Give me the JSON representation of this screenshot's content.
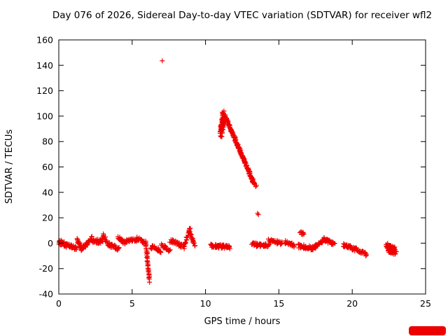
{
  "chart_data": {
    "type": "scatter",
    "title": "Day 076 of 2026, Sidereal Day-to-day VTEC variation (SDTVAR) for receiver wfl2",
    "xlabel": "GPS time / hours",
    "ylabel": "SDTVAR / TECUs",
    "xlim": [
      0,
      25
    ],
    "ylim": [
      -40,
      160
    ],
    "xticks": [
      0,
      5,
      10,
      15,
      20,
      25
    ],
    "yticks": [
      -40,
      -20,
      0,
      20,
      40,
      60,
      80,
      100,
      120,
      140,
      160
    ],
    "grid": false,
    "legend": "none",
    "marker": {
      "shape": "plus",
      "color": "#ee0000",
      "size": 7
    },
    "series": [
      {
        "name": "SDTVAR",
        "segments": [
          [
            0.05,
            1,
            0.55,
            -2,
            26,
            0.05,
            1.8
          ],
          [
            0.55,
            -1,
            1.2,
            -4,
            30,
            0.05,
            1.5
          ],
          [
            1.25,
            3,
            1.6,
            -6,
            22,
            0.05,
            1.5
          ],
          [
            1.6,
            -4,
            2.3,
            4,
            30,
            0.05,
            1.5
          ],
          [
            2.3,
            1,
            3.0,
            2,
            34,
            0.06,
            1.8
          ],
          [
            3.0,
            6,
            3.45,
            -2,
            20,
            0.05,
            1.5
          ],
          [
            3.45,
            -1,
            4.1,
            -5,
            26,
            0.05,
            1.5
          ],
          [
            4.05,
            4,
            4.6,
            0,
            22,
            0.05,
            1.5
          ],
          [
            4.6,
            2,
            5.3,
            3,
            28,
            0.06,
            1.5
          ],
          [
            5.3,
            4,
            5.95,
            0,
            26,
            0.05,
            1.5
          ],
          [
            5.95,
            -1,
            6.18,
            -30,
            34,
            0.035,
            1.2
          ],
          [
            6.3,
            -3,
            7.0,
            -6,
            28,
            0.06,
            1.6
          ],
          [
            7.0,
            -2,
            7.6,
            -6,
            22,
            0.05,
            1.5
          ],
          [
            7.6,
            2,
            8.4,
            -2,
            30,
            0.06,
            1.6
          ],
          [
            8.5,
            -4,
            8.95,
            12,
            26,
            0.04,
            1.3
          ],
          [
            8.95,
            9,
            9.25,
            -2,
            16,
            0.04,
            1.3
          ],
          [
            10.35,
            -2,
            11.65,
            -3,
            60,
            0.06,
            1.4
          ],
          [
            11.02,
            86,
            11.2,
            103,
            32,
            0.045,
            2.2
          ],
          [
            11.08,
            89,
            11.28,
            102,
            30,
            0.045,
            2.2
          ],
          [
            11.05,
            85,
            11.3,
            99,
            24,
            0.05,
            2.5
          ],
          [
            11.3,
            101,
            13.35,
            46,
            115,
            0.035,
            1.1
          ],
          [
            11.38,
            99,
            13.3,
            47,
            75,
            0.035,
            1.1
          ],
          [
            13.15,
            -1,
            14.3,
            -2,
            45,
            0.07,
            1.4
          ],
          [
            14.35,
            2,
            15.2,
            0,
            28,
            0.06,
            1.3
          ],
          [
            15.45,
            1,
            16.05,
            -2,
            22,
            0.05,
            1.3
          ],
          [
            16.45,
            9,
            16.68,
            7,
            10,
            0.04,
            1.0
          ],
          [
            16.3,
            -2,
            17.3,
            -4,
            36,
            0.06,
            1.7
          ],
          [
            17.3,
            -4,
            18.05,
            2,
            30,
            0.05,
            1.4
          ],
          [
            18.05,
            3,
            18.8,
            -1,
            28,
            0.05,
            1.4
          ],
          [
            19.4,
            -1,
            20.2,
            -5,
            32,
            0.06,
            1.5
          ],
          [
            20.2,
            -4,
            20.95,
            -9,
            28,
            0.05,
            1.4
          ],
          [
            22.35,
            -3,
            22.95,
            -6,
            60,
            0.08,
            3.0
          ],
          [
            22.45,
            -4,
            22.9,
            -7,
            40,
            0.08,
            2.6
          ]
        ],
        "points": [
          [
            7.05,
            143.5
          ],
          [
            13.42,
            44.5
          ],
          [
            13.48,
            45.5
          ],
          [
            13.55,
            23.5
          ],
          [
            13.6,
            22.5
          ],
          [
            0.05,
            0.5
          ]
        ]
      }
    ]
  },
  "decor": {
    "corner_box_color": "#ee0000"
  }
}
